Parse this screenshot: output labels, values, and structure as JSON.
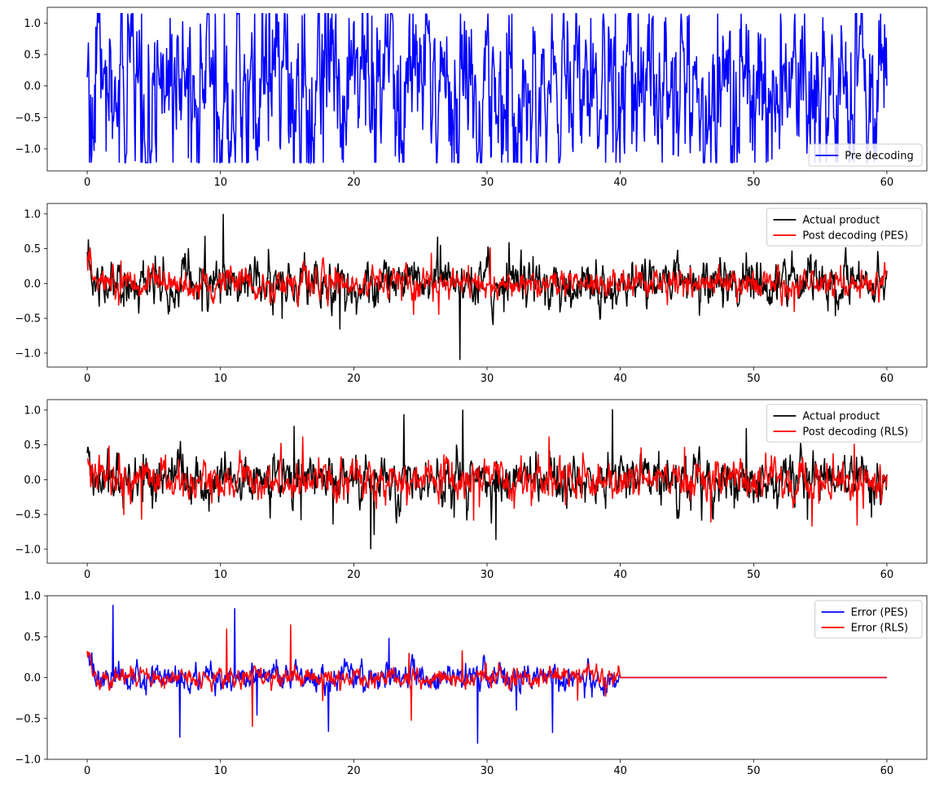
{
  "chart_data": [
    {
      "type": "line",
      "xlim": [
        -3,
        63
      ],
      "ylim": [
        -1.35,
        1.25
      ],
      "xticks": [
        0,
        10,
        20,
        30,
        40,
        50,
        60
      ],
      "yticks": [
        -1.0,
        -0.5,
        0.0,
        0.5,
        1.0
      ],
      "ytick_labels": [
        "−1.0",
        "−0.5",
        "0.0",
        "0.5",
        "1.0"
      ],
      "legend_loc": "lower-right",
      "series": [
        {
          "name": "Pre decoding",
          "color": "#0000ff",
          "x_range": [
            0,
            60
          ],
          "amplitude": 0.62,
          "min": -1.22,
          "max": 1.15,
          "mean": 0.0
        }
      ]
    },
    {
      "type": "line",
      "xlim": [
        -3,
        63
      ],
      "ylim": [
        -1.2,
        1.15
      ],
      "xticks": [
        0,
        10,
        20,
        30,
        40,
        50,
        60
      ],
      "yticks": [
        -1.0,
        -0.5,
        0.0,
        0.5,
        1.0
      ],
      "ytick_labels": [
        "−1.0",
        "−0.5",
        "0.0",
        "0.5",
        "1.0"
      ],
      "legend_loc": "upper-right",
      "series": [
        {
          "name": "Actual product",
          "color": "#000000",
          "x_range": [
            0,
            60
          ],
          "amplitude": 0.14,
          "min": -1.1,
          "max": 1.04,
          "mean": 0.0
        },
        {
          "name": "Post decoding (PES)",
          "color": "#ff0000",
          "x_range": [
            0,
            60
          ],
          "amplitude": 0.09,
          "min": -0.45,
          "max": 0.52,
          "mean": 0.0
        }
      ]
    },
    {
      "type": "line",
      "xlim": [
        -3,
        63
      ],
      "ylim": [
        -1.2,
        1.15
      ],
      "xticks": [
        0,
        10,
        20,
        30,
        40,
        50,
        60
      ],
      "yticks": [
        -1.0,
        -0.5,
        0.0,
        0.5,
        1.0
      ],
      "ytick_labels": [
        "−1.0",
        "−0.5",
        "0.0",
        "0.5",
        "1.0"
      ],
      "legend_loc": "upper-right",
      "series": [
        {
          "name": "Actual product",
          "color": "#000000",
          "x_range": [
            0,
            60
          ],
          "amplitude": 0.14,
          "min": -1.1,
          "max": 1.04,
          "mean": 0.0
        },
        {
          "name": "Post decoding (RLS)",
          "color": "#ff0000",
          "x_range": [
            0,
            60
          ],
          "amplitude": 0.12,
          "min": -0.75,
          "max": 0.62,
          "mean": 0.0
        }
      ]
    },
    {
      "type": "line",
      "xlim": [
        -3,
        63
      ],
      "ylim": [
        -1.0,
        1.0
      ],
      "xticks": [
        0,
        10,
        20,
        30,
        40,
        50,
        60
      ],
      "yticks": [
        -1.0,
        -0.5,
        0.0,
        0.5,
        1.0
      ],
      "ytick_labels": [
        "−1.0",
        "−0.5",
        "0.0",
        "0.5",
        "1.0"
      ],
      "legend_loc": "upper-right",
      "series": [
        {
          "name": "Error (PES)",
          "color": "#0000ff",
          "x_range": [
            0,
            60
          ],
          "active_until": 40,
          "amplitude": 0.07,
          "min": -0.82,
          "max": 0.9,
          "mean": 0.0
        },
        {
          "name": "Error (RLS)",
          "color": "#ff0000",
          "x_range": [
            0,
            60
          ],
          "active_until": 40,
          "amplitude": 0.05,
          "min": -0.65,
          "max": 0.65,
          "mean": 0.0
        }
      ]
    }
  ]
}
